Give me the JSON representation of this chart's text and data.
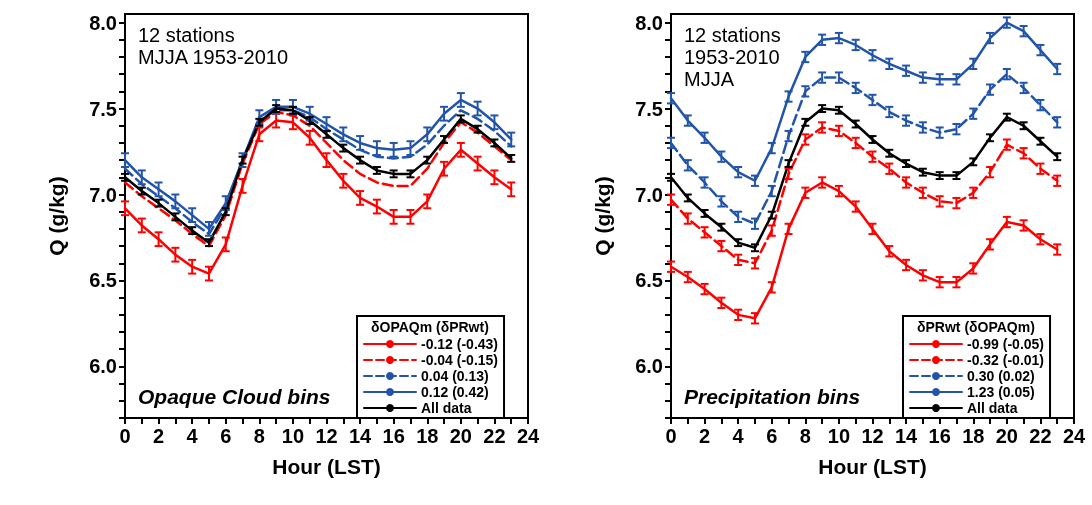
{
  "chart_data": [
    {
      "type": "line",
      "xlabel": "Hour (LST)",
      "ylabel": "Q (g/kg)",
      "legend_title": "δOPAQm (δPRwt)",
      "legend": "bottom right",
      "grid": false,
      "marker": "none",
      "annotations": [
        "12 stations\nMJJA 1953-2010",
        "Opaque Cloud bins"
      ],
      "x": [
        0,
        1,
        2,
        3,
        4,
        5,
        6,
        7,
        8,
        9,
        10,
        11,
        12,
        13,
        14,
        15,
        16,
        17,
        18,
        19,
        20,
        21,
        22,
        23
      ],
      "xlim": [
        0,
        24
      ],
      "xticks": [
        0,
        {
          "value": 1,
          "label": null
        },
        2,
        {
          "value": 3,
          "label": null
        },
        4,
        {
          "value": 5,
          "label": null
        },
        6,
        {
          "value": 7,
          "label": null
        },
        8,
        {
          "value": 9,
          "label": null
        },
        10,
        {
          "value": 11,
          "label": null
        },
        12,
        {
          "value": 13,
          "label": null
        },
        14,
        {
          "value": 15,
          "label": null
        },
        16,
        {
          "value": 17,
          "label": null
        },
        18,
        {
          "value": 19,
          "label": null
        },
        20,
        {
          "value": 21,
          "label": null
        },
        22,
        {
          "value": 23,
          "label": null
        },
        24
      ],
      "ylim": [
        5.7,
        8.05
      ],
      "yticks": [
        {
          "value": 5.7,
          "label": null
        },
        {
          "value": 5.8,
          "label": null
        },
        {
          "value": 5.9,
          "label": null
        },
        {
          "value": 6,
          "label": "6.0"
        },
        {
          "value": 6.1,
          "label": null
        },
        {
          "value": 6.2,
          "label": null
        },
        {
          "value": 6.3,
          "label": null
        },
        {
          "value": 6.4,
          "label": null
        },
        {
          "value": 6.5,
          "label": "6.5"
        },
        {
          "value": 6.6,
          "label": null
        },
        {
          "value": 6.7,
          "label": null
        },
        {
          "value": 6.8,
          "label": null
        },
        {
          "value": 6.9,
          "label": null
        },
        {
          "value": 7,
          "label": "7.0"
        },
        {
          "value": 7.1,
          "label": null
        },
        {
          "value": 7.2,
          "label": null
        },
        {
          "value": 7.3,
          "label": null
        },
        {
          "value": 7.4,
          "label": null
        },
        {
          "value": 7.5,
          "label": "7.5"
        },
        {
          "value": 7.6,
          "label": null
        },
        {
          "value": 7.7,
          "label": null
        },
        {
          "value": 7.8,
          "label": null
        },
        {
          "value": 7.9,
          "label": null
        },
        {
          "value": 8,
          "label": "8.0"
        }
      ],
      "series": [
        {
          "name": "-0.12 (-0.43)",
          "color": "#ff0000",
          "line_style": "solid",
          "values": [
            6.92,
            6.82,
            6.74,
            6.65,
            6.58,
            6.54,
            6.71,
            7.05,
            7.35,
            7.43,
            7.42,
            7.33,
            7.2,
            7.08,
            6.98,
            6.93,
            6.87,
            6.87,
            6.96,
            7.15,
            7.26,
            7.18,
            7.1,
            7.03
          ],
          "errors": [
            0.04,
            0.04,
            0.04,
            0.04,
            0.04,
            0.04,
            0.04,
            0.04,
            0.04,
            0.04,
            0.04,
            0.04,
            0.04,
            0.04,
            0.04,
            0.04,
            0.04,
            0.04,
            0.04,
            0.04,
            0.04,
            0.04,
            0.04,
            0.04
          ]
        },
        {
          "name": "-0.04 (-0.15)",
          "color": "#ff0000",
          "line_style": "dashed",
          "values": [
            7.07,
            6.99,
            6.92,
            6.85,
            6.77,
            6.7,
            6.88,
            7.18,
            7.41,
            7.48,
            7.46,
            7.4,
            7.3,
            7.2,
            7.12,
            7.07,
            7.05,
            7.05,
            7.15,
            7.3,
            7.42,
            7.36,
            7.28,
            7.2
          ]
        },
        {
          "name": "0.04 (0.13)",
          "color": "#2255aa",
          "line_style": "dashed",
          "values": [
            7.15,
            7.06,
            6.99,
            6.92,
            6.84,
            6.77,
            6.93,
            7.2,
            7.43,
            7.49,
            7.49,
            7.45,
            7.38,
            7.32,
            7.26,
            7.22,
            7.21,
            7.22,
            7.29,
            7.4,
            7.49,
            7.44,
            7.37,
            7.28
          ]
        },
        {
          "name": "0.12 (0.42)",
          "color": "#2255aa",
          "line_style": "solid",
          "values": [
            7.2,
            7.1,
            7.03,
            6.96,
            6.88,
            6.8,
            6.95,
            7.2,
            7.45,
            7.51,
            7.51,
            7.47,
            7.41,
            7.35,
            7.3,
            7.27,
            7.26,
            7.27,
            7.35,
            7.47,
            7.55,
            7.5,
            7.42,
            7.32
          ],
          "errors": [
            0.04,
            0.04,
            0.04,
            0.04,
            0.04,
            0.04,
            0.04,
            0.04,
            0.04,
            0.04,
            0.04,
            0.04,
            0.04,
            0.04,
            0.04,
            0.04,
            0.04,
            0.04,
            0.04,
            0.04,
            0.04,
            0.04,
            0.04,
            0.04
          ]
        },
        {
          "name": "All data",
          "color": "#000000",
          "line_style": "solid",
          "values": [
            7.1,
            7.02,
            6.95,
            6.87,
            6.79,
            6.72,
            6.9,
            7.2,
            7.42,
            7.5,
            7.49,
            7.43,
            7.35,
            7.27,
            7.2,
            7.14,
            7.12,
            7.12,
            7.2,
            7.32,
            7.44,
            7.38,
            7.3,
            7.21
          ],
          "errors": [
            0.02,
            0.02,
            0.02,
            0.02,
            0.02,
            0.02,
            0.02,
            0.02,
            0.02,
            0.02,
            0.02,
            0.02,
            0.02,
            0.02,
            0.02,
            0.02,
            0.02,
            0.02,
            0.02,
            0.02,
            0.02,
            0.02,
            0.02,
            0.02
          ]
        }
      ]
    },
    {
      "type": "line",
      "xlabel": "Hour (LST)",
      "ylabel": "Q (g/kg)",
      "legend_title": "δPRwt (δOPAQm)",
      "legend": "bottom right",
      "grid": false,
      "marker": "none",
      "annotations": [
        "12 stations\n1953-2010\nMJJA",
        "Precipitation bins"
      ],
      "x": [
        0,
        1,
        2,
        3,
        4,
        5,
        6,
        7,
        8,
        9,
        10,
        11,
        12,
        13,
        14,
        15,
        16,
        17,
        18,
        19,
        20,
        21,
        22,
        23
      ],
      "xlim": [
        0,
        24
      ],
      "xticks": [
        0,
        {
          "value": 1,
          "label": null
        },
        2,
        {
          "value": 3,
          "label": null
        },
        4,
        {
          "value": 5,
          "label": null
        },
        6,
        {
          "value": 7,
          "label": null
        },
        8,
        {
          "value": 9,
          "label": null
        },
        10,
        {
          "value": 11,
          "label": null
        },
        12,
        {
          "value": 13,
          "label": null
        },
        14,
        {
          "value": 15,
          "label": null
        },
        16,
        {
          "value": 17,
          "label": null
        },
        18,
        {
          "value": 19,
          "label": null
        },
        20,
        {
          "value": 21,
          "label": null
        },
        22,
        {
          "value": 23,
          "label": null
        },
        24
      ],
      "ylim": [
        5.7,
        8.05
      ],
      "yticks": [
        {
          "value": 5.7,
          "label": null
        },
        {
          "value": 5.8,
          "label": null
        },
        {
          "value": 5.9,
          "label": null
        },
        {
          "value": 6,
          "label": "6.0"
        },
        {
          "value": 6.1,
          "label": null
        },
        {
          "value": 6.2,
          "label": null
        },
        {
          "value": 6.3,
          "label": null
        },
        {
          "value": 6.4,
          "label": null
        },
        {
          "value": 6.5,
          "label": "6.5"
        },
        {
          "value": 6.6,
          "label": null
        },
        {
          "value": 6.7,
          "label": null
        },
        {
          "value": 6.8,
          "label": null
        },
        {
          "value": 6.9,
          "label": null
        },
        {
          "value": 7,
          "label": "7.0"
        },
        {
          "value": 7.1,
          "label": null
        },
        {
          "value": 7.2,
          "label": null
        },
        {
          "value": 7.3,
          "label": null
        },
        {
          "value": 7.4,
          "label": null
        },
        {
          "value": 7.5,
          "label": "7.5"
        },
        {
          "value": 7.6,
          "label": null
        },
        {
          "value": 7.7,
          "label": null
        },
        {
          "value": 7.8,
          "label": null
        },
        {
          "value": 7.9,
          "label": null
        },
        {
          "value": 8,
          "label": "8.0"
        }
      ],
      "series": [
        {
          "name": "-0.99 (-0.05)",
          "color": "#ff0000",
          "line_style": "solid",
          "values": [
            6.58,
            6.52,
            6.45,
            6.37,
            6.3,
            6.28,
            6.46,
            6.8,
            7.01,
            7.07,
            7.02,
            6.93,
            6.8,
            6.67,
            6.59,
            6.53,
            6.49,
            6.49,
            6.57,
            6.71,
            6.84,
            6.82,
            6.74,
            6.68
          ],
          "errors": [
            0.03,
            0.03,
            0.03,
            0.03,
            0.03,
            0.03,
            0.03,
            0.03,
            0.03,
            0.03,
            0.03,
            0.03,
            0.03,
            0.03,
            0.03,
            0.03,
            0.03,
            0.03,
            0.03,
            0.03,
            0.03,
            0.03,
            0.03,
            0.03
          ]
        },
        {
          "name": "-0.32 (-0.01)",
          "color": "#ff0000",
          "line_style": "dashed",
          "values": [
            6.97,
            6.86,
            6.78,
            6.7,
            6.62,
            6.6,
            6.79,
            7.12,
            7.32,
            7.39,
            7.37,
            7.3,
            7.22,
            7.15,
            7.07,
            7.01,
            6.96,
            6.95,
            7.01,
            7.13,
            7.29,
            7.24,
            7.15,
            7.08
          ],
          "errors": [
            0.03,
            0.03,
            0.03,
            0.03,
            0.03,
            0.03,
            0.03,
            0.03,
            0.03,
            0.03,
            0.03,
            0.03,
            0.03,
            0.03,
            0.03,
            0.03,
            0.03,
            0.03,
            0.03,
            0.03,
            0.03,
            0.03,
            0.03,
            0.03
          ]
        },
        {
          "name": "0.30 (0.02)",
          "color": "#2255aa",
          "line_style": "dashed",
          "values": [
            7.3,
            7.17,
            7.07,
            6.96,
            6.87,
            6.83,
            7.02,
            7.34,
            7.6,
            7.68,
            7.68,
            7.62,
            7.55,
            7.48,
            7.43,
            7.39,
            7.36,
            7.38,
            7.47,
            7.61,
            7.7,
            7.62,
            7.52,
            7.42
          ],
          "errors": [
            0.03,
            0.03,
            0.03,
            0.03,
            0.03,
            0.03,
            0.03,
            0.03,
            0.03,
            0.03,
            0.03,
            0.03,
            0.03,
            0.03,
            0.03,
            0.03,
            0.03,
            0.03,
            0.03,
            0.03,
            0.03,
            0.03,
            0.03,
            0.03
          ]
        },
        {
          "name": "1.23 (0.05)",
          "color": "#2255aa",
          "line_style": "solid",
          "values": [
            7.56,
            7.43,
            7.33,
            7.22,
            7.13,
            7.08,
            7.27,
            7.57,
            7.8,
            7.9,
            7.91,
            7.87,
            7.81,
            7.76,
            7.72,
            7.68,
            7.67,
            7.67,
            7.76,
            7.91,
            8.0,
            7.95,
            7.84,
            7.73
          ],
          "errors": [
            0.03,
            0.03,
            0.03,
            0.03,
            0.03,
            0.03,
            0.03,
            0.03,
            0.03,
            0.03,
            0.03,
            0.03,
            0.03,
            0.03,
            0.03,
            0.03,
            0.03,
            0.03,
            0.03,
            0.03,
            0.03,
            0.03,
            0.03,
            0.03
          ]
        },
        {
          "name": "All data",
          "color": "#000000",
          "line_style": "solid",
          "values": [
            7.1,
            6.98,
            6.89,
            6.81,
            6.72,
            6.69,
            6.88,
            7.18,
            7.42,
            7.5,
            7.49,
            7.41,
            7.32,
            7.24,
            7.18,
            7.13,
            7.11,
            7.11,
            7.19,
            7.33,
            7.45,
            7.4,
            7.31,
            7.22
          ],
          "errors": [
            0.02,
            0.02,
            0.02,
            0.02,
            0.02,
            0.02,
            0.02,
            0.02,
            0.02,
            0.02,
            0.02,
            0.02,
            0.02,
            0.02,
            0.02,
            0.02,
            0.02,
            0.02,
            0.02,
            0.02,
            0.02,
            0.02,
            0.02,
            0.02
          ]
        }
      ]
    }
  ]
}
